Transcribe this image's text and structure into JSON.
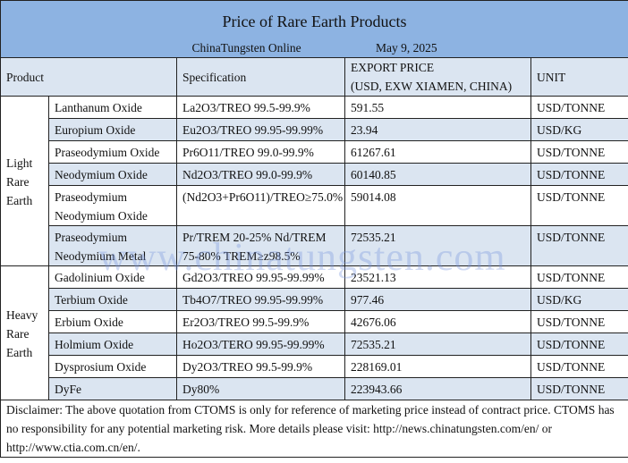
{
  "title": "Price of Rare Earth Products",
  "source": "ChinaTungsten Online",
  "date": "May 9, 2025",
  "headers": {
    "product": "Product",
    "spec": "Specification",
    "price_line1": "EXPORT PRICE",
    "price_line2": "(USD, EXW XIAMEN, CHINA)",
    "unit": "UNIT"
  },
  "groups": [
    {
      "label_lines": [
        "Light",
        "Rare",
        "Earth"
      ]
    },
    {
      "label_lines": [
        "Heavy",
        "Rare",
        "Earth"
      ]
    }
  ],
  "rows": [
    {
      "product": "Lanthanum Oxide",
      "spec": "La2O3/TREO 99.5-99.9%",
      "price": "591.55",
      "unit": "USD/TONNE"
    },
    {
      "product": "Europium Oxide",
      "spec": "Eu2O3/TREO 99.95-99.99%",
      "price": "23.94",
      "unit": "USD/KG"
    },
    {
      "product": "Praseodymium Oxide",
      "spec": "Pr6O11/TREO 99.0-99.9%",
      "price": "61267.61",
      "unit": "USD/TONNE"
    },
    {
      "product": "Neodymium Oxide",
      "spec": "Nd2O3/TREO 99.0-99.9%",
      "price": "60140.85",
      "unit": "USD/TONNE"
    },
    {
      "product": "Praseodymium Neodymium Oxide",
      "spec": "(Nd2O3+Pr6O11)/TREO≥75.0%",
      "price": "59014.08",
      "unit": "USD/TONNE"
    },
    {
      "product": "Praseodymium Neodymium Metal",
      "spec": "Pr/TREM 20-25% Nd/TREM 75-80% TREM≥z98.5%",
      "price": "72535.21",
      "unit": "USD/TONNE"
    },
    {
      "product": "Gadolinium Oxide",
      "spec": "Gd2O3/TREO 99.95-99.99%",
      "price": "23521.13",
      "unit": "USD/TONNE"
    },
    {
      "product": "Terbium Oxide",
      "spec": "Tb4O7/TREO 99.95-99.99%",
      "price": "977.46",
      "unit": "USD/KG"
    },
    {
      "product": "Erbium Oxide",
      "spec": "Er2O3/TREO 99.5-99.9%",
      "price": "42676.06",
      "unit": "USD/TONNE"
    },
    {
      "product": "Holmium Oxide",
      "spec": "Ho2O3/TERO 99.95-99.99%",
      "price": "72535.21",
      "unit": "USD/TONNE"
    },
    {
      "product": "Dysprosium Oxide",
      "spec": "Dy2O3/TREO 99.5-99.9%",
      "price": "228169.01",
      "unit": "USD/TONNE"
    },
    {
      "product": "DyFe",
      "spec": "Dy80%",
      "price": "223943.66",
      "unit": "USD/TONNE"
    }
  ],
  "disclaimer": "Disclaimer: The above quotation from CTOMS is only for reference of marketing price instead of contract price. CTOMS has no responsibility for any potential marketing risk. More details please visit:    http://news.chinatungsten.com/en/ or http://www.ctia.com.cn/en/.",
  "watermark": "www.chinatungsten.com",
  "colors": {
    "title_bg": "#8db3e2",
    "stripe": "#dbe5f1"
  }
}
